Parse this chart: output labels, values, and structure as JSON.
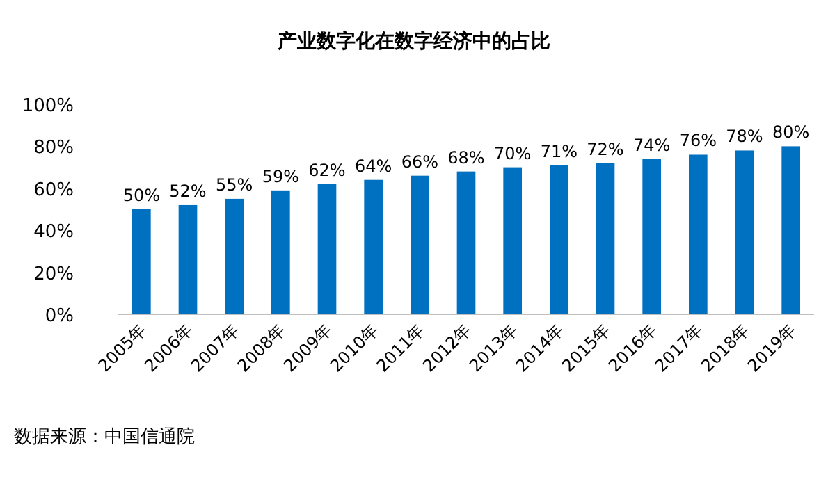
{
  "chart_data": {
    "type": "bar",
    "title": "产业数字化在数字经济中的占比",
    "categories": [
      "2005年",
      "2006年",
      "2007年",
      "2008年",
      "2009年",
      "2010年",
      "2011年",
      "2012年",
      "2013年",
      "2014年",
      "2015年",
      "2016年",
      "2017年",
      "2018年",
      "2019年"
    ],
    "values": [
      50,
      52,
      55,
      59,
      62,
      64,
      66,
      68,
      70,
      71,
      72,
      74,
      76,
      78,
      80
    ],
    "value_labels": [
      "50%",
      "52%",
      "55%",
      "59%",
      "62%",
      "64%",
      "66%",
      "68%",
      "70%",
      "71%",
      "72%",
      "74%",
      "76%",
      "78%",
      "80%"
    ],
    "color": "#0070c0",
    "ylim": [
      0,
      100
    ],
    "yticks": [
      {
        "value": 0,
        "label": "0%"
      },
      {
        "value": 20,
        "label": "20%"
      },
      {
        "value": 40,
        "label": "40%"
      },
      {
        "value": 60,
        "label": "60%"
      },
      {
        "value": 80,
        "label": "80%"
      },
      {
        "value": 100,
        "label": "100%"
      }
    ],
    "grid": false,
    "annotations": [
      "数据来源：中国信通院"
    ]
  }
}
